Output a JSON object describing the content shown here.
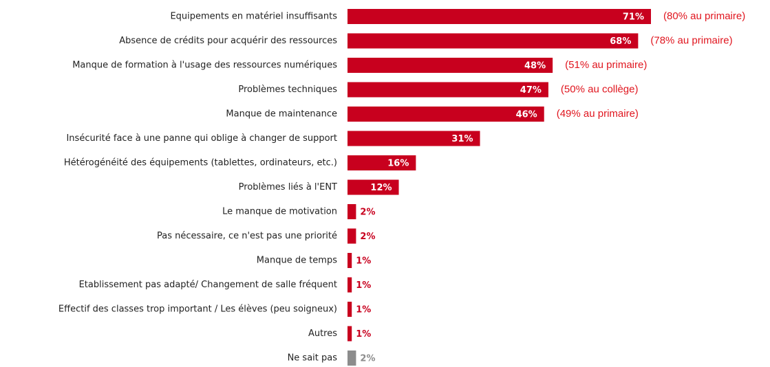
{
  "chart_data": {
    "type": "barh",
    "categories": [
      "Equipements en matériel insuffisants",
      "Absence de crédits pour acquérir des ressources",
      "Manque de formation à l'usage des ressources numériques",
      "Problèmes techniques",
      "Manque de maintenance",
      "Insécurité face à une panne qui oblige à changer de support",
      "Hétérogénéité des équipements (tablettes, ordinateurs, etc.)",
      "Problèmes liés à l'ENT",
      "Le manque de motivation",
      "Pas nécessaire, ce n'est pas une priorité",
      "Manque de temps",
      "Etablissement pas adapté/ Changement de salle fréquent",
      "Effectif des classes trop important / Les élèves (peu soigneux)",
      "Autres",
      "Ne sait pas"
    ],
    "values": [
      71,
      68,
      48,
      47,
      46,
      31,
      16,
      12,
      2,
      2,
      1,
      1,
      1,
      1,
      2
    ],
    "value_labels": [
      "71%",
      "68%",
      "48%",
      "47%",
      "46%",
      "31%",
      "16%",
      "12%",
      "2%",
      "2%",
      "1%",
      "1%",
      "1%",
      "1%",
      "2%"
    ],
    "notes": [
      "(80% au primaire)",
      "(78% au primaire)",
      "(51% au primaire)",
      "(50% au collège)",
      "(49% au primaire)",
      null,
      null,
      null,
      null,
      null,
      null,
      null,
      null,
      null,
      null
    ],
    "colors": [
      "#c8001e",
      "#c8001e",
      "#c8001e",
      "#c8001e",
      "#c8001e",
      "#c8001e",
      "#c8001e",
      "#c8001e",
      "#c8001e",
      "#c8001e",
      "#c8001e",
      "#c8001e",
      "#c8001e",
      "#c8001e",
      "#8c8c8c"
    ],
    "note_color": "#e0151e"
  }
}
